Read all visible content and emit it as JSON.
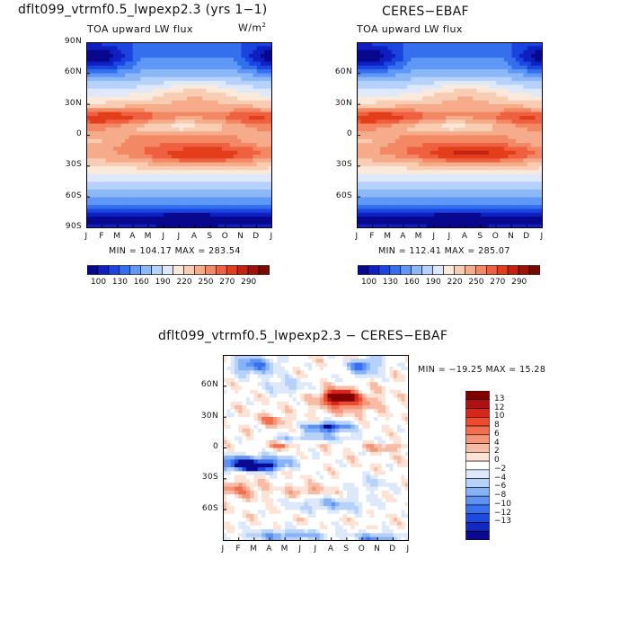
{
  "panels": [
    {
      "id": "model",
      "title": "dflt099_vtrmf0.5_lwpexp2.3 (yrs 1−1)",
      "subtitle": "TOA upward LW flux",
      "units_base": "W/m",
      "units_sup": "2",
      "stats": "MIN = 104.17  MAX = 283.54"
    },
    {
      "id": "obs",
      "title": "CERES−EBAF",
      "subtitle": "TOA upward LW flux",
      "stats": "MIN = 112.41  MAX = 285.07"
    },
    {
      "id": "diff",
      "title": "dflt099_vtrmf0.5_lwpexp2.3 − CERES−EBAF",
      "stats": "MIN = −19.25  MAX =  15.28"
    }
  ],
  "chart_data": [
    {
      "type": "heatmap",
      "title": "dflt099_vtrmf0.5_lwpexp2.3 (yrs 1−1)",
      "subtitle": "TOA upward LW flux",
      "units": "W/m2",
      "x_ticks": [
        "J",
        "F",
        "M",
        "A",
        "M",
        "J",
        "J",
        "A",
        "S",
        "O",
        "N",
        "D",
        "J"
      ],
      "y_ticks": [
        "90N",
        "60N",
        "30N",
        "0",
        "30S",
        "60S",
        "90S"
      ],
      "ylim": [
        -90,
        90
      ],
      "min": 104.17,
      "max": 283.54,
      "colorbar_levels": [
        100,
        130,
        160,
        190,
        220,
        250,
        270,
        290
      ]
    },
    {
      "type": "heatmap",
      "title": "CERES−EBAF",
      "subtitle": "TOA upward LW flux",
      "x_ticks": [
        "J",
        "F",
        "M",
        "A",
        "M",
        "J",
        "J",
        "A",
        "S",
        "O",
        "N",
        "D",
        "J"
      ],
      "y_ticks": [
        "60N",
        "30N",
        "0",
        "30S",
        "60S"
      ],
      "ylim": [
        -90,
        90
      ],
      "min": 112.41,
      "max": 285.07,
      "colorbar_levels": [
        100,
        130,
        160,
        190,
        220,
        250,
        270,
        290
      ]
    },
    {
      "type": "heatmap",
      "title": "dflt099_vtrmf0.5_lwpexp2.3 − CERES−EBAF",
      "x_ticks": [
        "J",
        "F",
        "M",
        "A",
        "M",
        "J",
        "J",
        "A",
        "S",
        "O",
        "N",
        "D",
        "J"
      ],
      "y_ticks": [
        "60N",
        "30N",
        "0",
        "30S",
        "60S"
      ],
      "ylim": [
        -90,
        90
      ],
      "min": -19.25,
      "max": 15.28,
      "colorbar_levels": [
        13,
        12,
        10,
        8,
        6,
        4,
        2,
        0,
        -2,
        -4,
        -6,
        -8,
        -10,
        -12,
        -13
      ]
    }
  ],
  "palette": {
    "flux": [
      "#08088f",
      "#0f1fc0",
      "#1b45e0",
      "#3470ee",
      "#5f98f6",
      "#8db8f8",
      "#b7d2fa",
      "#dde9fb",
      "#fbe9dc",
      "#f8cdb3",
      "#f6ac8a",
      "#f38864",
      "#ef6040",
      "#e33e1c",
      "#c72210",
      "#9e1206",
      "#780a00"
    ],
    "diff": [
      "#800000",
      "#b01010",
      "#d8261a",
      "#ef4a2d",
      "#f26e50",
      "#f5957a",
      "#f8bca6",
      "#fce3d6",
      "#ffffff",
      "#dde9fb",
      "#b7d2fa",
      "#86b3f8",
      "#5d92f2",
      "#3a6fee",
      "#1e49e0",
      "#1228c0",
      "#0a0a90"
    ]
  }
}
